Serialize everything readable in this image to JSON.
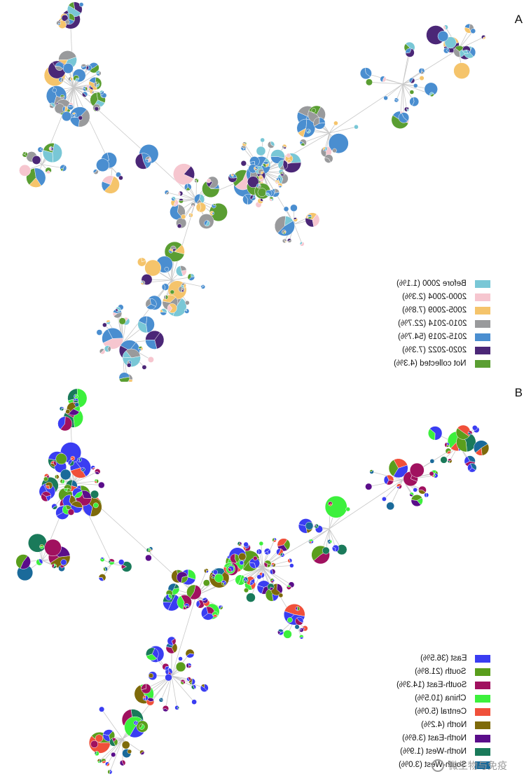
{
  "panels": [
    {
      "letter": "A",
      "legend": [
        {
          "label": "Before 2000 (1.1%)",
          "color": "#79c7d6"
        },
        {
          "label": "2000-2004 (2.3%)",
          "color": "#f6c6cf"
        },
        {
          "label": "2005-2009 (7.8%)",
          "color": "#f5c46b"
        },
        {
          "label": "2010-2014 (22.7%)",
          "color": "#999a9c"
        },
        {
          "label": "2015-2019 (54.7%)",
          "color": "#4a8ed0"
        },
        {
          "label": "2020-2022 (7.3%)",
          "color": "#4b2777"
        },
        {
          "label": "Not collected (4.3%)",
          "color": "#5a9e32"
        }
      ]
    },
    {
      "letter": "B",
      "legend": [
        {
          "label": "East (36.5%)",
          "color": "#3a3df2"
        },
        {
          "label": "South (21.8%)",
          "color": "#5a9e1c"
        },
        {
          "label": "South-East (14.3%)",
          "color": "#a0115f"
        },
        {
          "label": "China (10.5%)",
          "color": "#3cf03c"
        },
        {
          "label": "Central (5.0%)",
          "color": "#f0503a"
        },
        {
          "label": "North (4.2%)",
          "color": "#7e6a0a"
        },
        {
          "label": "North-East (3.6%)",
          "color": "#5a0d8a"
        },
        {
          "label": "North-West (1.9%)",
          "color": "#1a7a5a"
        },
        {
          "label": "South-West (3.0%)",
          "color": "#1a6a9a"
        }
      ]
    }
  ],
  "watermark": "微生物与免疫"
}
